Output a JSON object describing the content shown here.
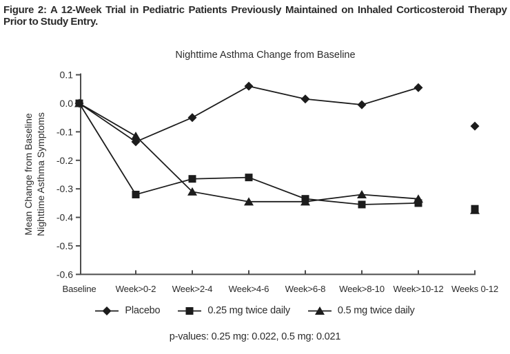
{
  "caption": {
    "lines": [
      "Figure 2: A 12-Week Trial in Pediatric Patients Previously Maintained on Inhaled Corticosteroid Therapy",
      "Prior to Study Entry."
    ]
  },
  "chart_data": {
    "type": "line",
    "title": "Nighttime Asthma Change from Baseline",
    "ylabel_lines": [
      "Mean Change from Baseline",
      "Nighttime Asthma Symptoms"
    ],
    "xlabel": "",
    "categories": [
      "Baseline",
      "Week>0-2",
      "Week>2-4",
      "Week>4-6",
      "Week>6-8",
      "Week>8-10",
      "Week>10-12",
      "Weeks 0-12"
    ],
    "y_ticks": [
      0.1,
      0.0,
      -0.1,
      -0.2,
      -0.3,
      -0.4,
      -0.5,
      -0.6
    ],
    "ylim": [
      -0.6,
      0.1
    ],
    "grid": false,
    "legend_position": "bottom",
    "connected_points": 7,
    "isolated_last_category": true,
    "series": [
      {
        "name": "Placebo",
        "marker": "diamond",
        "values": [
          0.0,
          -0.135,
          -0.05,
          0.06,
          0.015,
          -0.005,
          0.055,
          -0.08
        ]
      },
      {
        "name": "0.25 mg twice daily",
        "marker": "square",
        "values": [
          0.0,
          -0.32,
          -0.265,
          -0.26,
          -0.335,
          -0.355,
          -0.35,
          -0.37
        ]
      },
      {
        "name": "0.5 mg twice daily",
        "marker": "triangle",
        "values": [
          0.0,
          -0.115,
          -0.31,
          -0.345,
          -0.345,
          -0.32,
          -0.335,
          -0.375
        ]
      }
    ],
    "colors": {
      "line": "#1c1c1c",
      "marker": "#1c1c1c",
      "axis": "#4c4c4c",
      "text": "#2b2b2b"
    }
  },
  "footnote": "p-values: 0.25 mg: 0.022, 0.5 mg: 0.021"
}
